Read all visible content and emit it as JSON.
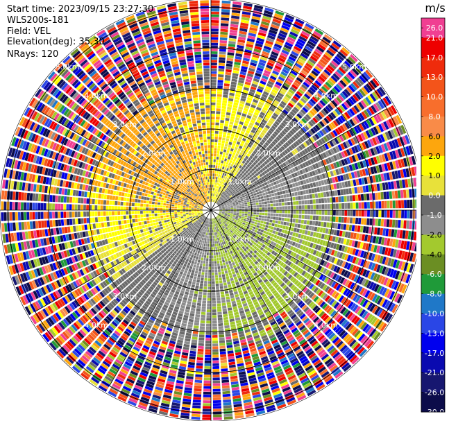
{
  "header": {
    "start_time": "Start time: 2023/09/15 23:27:30",
    "instrument": "WLS200s-181",
    "field": "Field: VEL",
    "elevation": "Elevation(deg): 35.30",
    "nrays": "NRays: 120"
  },
  "chart_data": {
    "type": "heatmap",
    "projection": "polar",
    "nrays": 120,
    "range_rings_km": [
      1.0,
      2.0,
      3.0,
      4.0,
      5.0
    ],
    "ring_labels": {
      "r1": [
        "1.0km",
        "1.0km",
        "1.0km",
        "1.0km"
      ],
      "r2": [
        "2.0km",
        "2.0km",
        "2.0km",
        "2.0km"
      ],
      "r3": [
        "3.0km",
        "3.0km",
        "3.0km",
        "3.0km"
      ],
      "r4": [
        "4.0km",
        "4.0km",
        "4.0km",
        "4.0km"
      ],
      "r5": [
        "5.0km",
        "5.0km"
      ]
    },
    "max_range_km": 5.2,
    "spoke_angles_deg": [
      0,
      30,
      60,
      90,
      120,
      150,
      180,
      210,
      240,
      270,
      300,
      330
    ],
    "velocity_pattern": {
      "northwest_sector": "positive (yellow, ~2 m/s)",
      "southeast_sector": "negative (green, ~-2 m/s)",
      "inner_range_km": 3.0,
      "outer_noise_range_km": [
        3.5,
        5.2
      ]
    },
    "colorbar": {
      "unit": "m/s",
      "tick_labels": [
        "26.0",
        "21.0",
        "17.0",
        "13.0",
        "10.0",
        "8.0",
        "6.0",
        "2.0",
        "1.0",
        "0.0",
        "-1.0",
        "-2.0",
        "-4.0",
        "-6.0",
        "-8.0",
        "-10.0",
        "-13.0",
        "-17.0",
        "-21.0",
        "-26.0",
        "-30.0"
      ],
      "bins": [
        {
          "min": 21,
          "max": 26,
          "color": "#f03f92"
        },
        {
          "min": 17,
          "max": 21,
          "color": "#ee0000"
        },
        {
          "min": 13,
          "max": 17,
          "color": "#ef2b0c"
        },
        {
          "min": 10,
          "max": 13,
          "color": "#f3541a"
        },
        {
          "min": 8,
          "max": 10,
          "color": "#f86e2c"
        },
        {
          "min": 6,
          "max": 8,
          "color": "#f98b48"
        },
        {
          "min": 2,
          "max": 6,
          "color": "#fda60d"
        },
        {
          "min": 1,
          "max": 2,
          "color": "#ffff00"
        },
        {
          "min": 0,
          "max": 1,
          "color": "#e8e13a"
        },
        {
          "min": -1,
          "max": 0,
          "color": "#6b6b6b"
        },
        {
          "min": -2,
          "max": -1,
          "color": "#8d8d8d"
        },
        {
          "min": -4,
          "max": -2,
          "color": "#a3c92e"
        },
        {
          "min": -6,
          "max": -4,
          "color": "#6b8e23"
        },
        {
          "min": -8,
          "max": -6,
          "color": "#1f9a39"
        },
        {
          "min": -10,
          "max": -8,
          "color": "#1f78c8"
        },
        {
          "min": -13,
          "max": -10,
          "color": "#2a46e6"
        },
        {
          "min": -17,
          "max": -13,
          "color": "#0000ee"
        },
        {
          "min": -21,
          "max": -17,
          "color": "#0a0ab0"
        },
        {
          "min": -26,
          "max": -21,
          "color": "#171770"
        },
        {
          "min": -30,
          "max": -26,
          "color": "#0c0c4a"
        }
      ]
    }
  }
}
